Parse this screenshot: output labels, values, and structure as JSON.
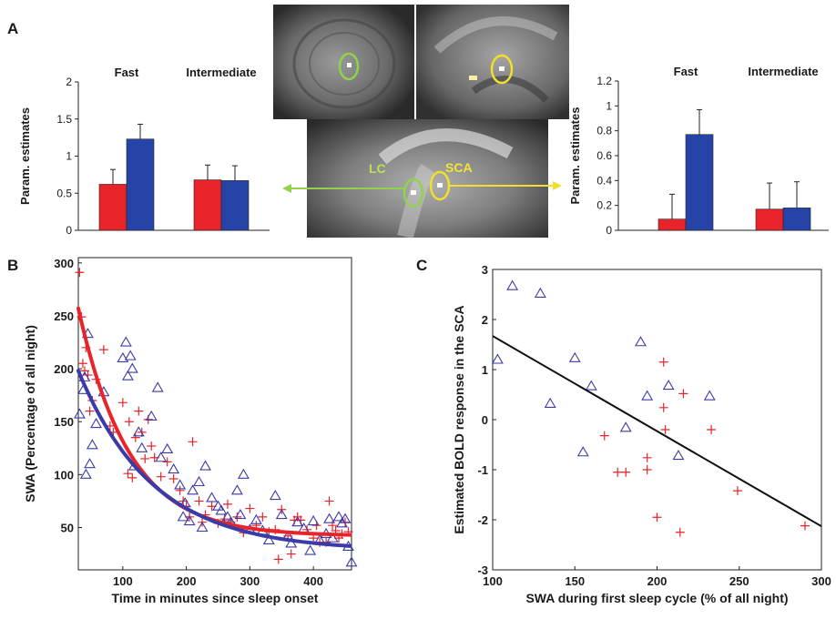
{
  "panels": {
    "A": "A",
    "B": "B",
    "C": "C"
  },
  "brain": {
    "lc_label": "LC",
    "sca_label": "SCA"
  },
  "chart_data": [
    {
      "id": "A-left",
      "type": "bar",
      "groups": [
        "Fast",
        "Intermediate"
      ],
      "series": [
        {
          "color": "#e8242a",
          "values": [
            0.62,
            0.68
          ],
          "errors": [
            0.2,
            0.2
          ]
        },
        {
          "color": "#2644a8",
          "values": [
            1.23,
            0.67
          ],
          "errors": [
            0.2,
            0.2
          ]
        }
      ],
      "ylabel": "Param. estimates",
      "ylim": [
        0,
        2
      ],
      "yticks": [
        "0",
        "0.5",
        "1",
        "1.5",
        "2"
      ],
      "ytick_values": [
        0,
        0.5,
        1,
        1.5,
        2
      ]
    },
    {
      "id": "A-right",
      "type": "bar",
      "groups": [
        "Fast",
        "Intermediate"
      ],
      "series": [
        {
          "color": "#e8242a",
          "values": [
            0.09,
            0.17
          ],
          "errors": [
            0.2,
            0.21
          ]
        },
        {
          "color": "#2644a8",
          "values": [
            0.77,
            0.18
          ],
          "errors": [
            0.2,
            0.21
          ]
        }
      ],
      "ylabel": "Param. estimates",
      "ylim": [
        0,
        1.2
      ],
      "yticks": [
        "0",
        "0.2",
        "0.4",
        "0.6",
        "0.8",
        "1",
        "1.2"
      ],
      "ytick_values": [
        0,
        0.2,
        0.4,
        0.6,
        0.8,
        1,
        1.2
      ]
    },
    {
      "id": "B",
      "type": "scatter",
      "xlabel": "Time in minutes since sleep onset",
      "ylabel": "SWA (Percentage of all night)",
      "xlim": [
        30,
        460
      ],
      "ylim": [
        10,
        305
      ],
      "xticks": [
        "100",
        "200",
        "300",
        "400"
      ],
      "xtick_values": [
        100,
        200,
        300,
        400
      ],
      "yticks": [
        "50",
        "100",
        "150",
        "200",
        "250",
        "300"
      ],
      "ytick_values": [
        50,
        100,
        150,
        200,
        250,
        300
      ],
      "series": [
        {
          "color": "#e8242a",
          "marker": "plus",
          "fit": {
            "A": 215,
            "k": 0.0125,
            "C": 42,
            "x0": 30
          },
          "points": [
            [
              32,
              291
            ],
            [
              35,
              249
            ],
            [
              37,
              205
            ],
            [
              40,
              198
            ],
            [
              42,
              220
            ],
            [
              45,
              194
            ],
            [
              48,
              160
            ],
            [
              52,
              170
            ],
            [
              58,
              190
            ],
            [
              70,
              218
            ],
            [
              80,
              146
            ],
            [
              85,
              140
            ],
            [
              100,
              168
            ],
            [
              108,
              101
            ],
            [
              110,
              150
            ],
            [
              115,
              97
            ],
            [
              120,
              135
            ],
            [
              125,
              160
            ],
            [
              130,
              140
            ],
            [
              135,
              115
            ],
            [
              140,
              152
            ],
            [
              145,
              127
            ],
            [
              150,
              116
            ],
            [
              160,
              98
            ],
            [
              170,
              112
            ],
            [
              180,
              96
            ],
            [
              190,
              85
            ],
            [
              195,
              75
            ],
            [
              200,
              70
            ],
            [
              205,
              60
            ],
            [
              210,
              131
            ],
            [
              220,
              75
            ],
            [
              225,
              55
            ],
            [
              230,
              62
            ],
            [
              240,
              70
            ],
            [
              250,
              54
            ],
            [
              260,
              58
            ],
            [
              265,
              72
            ],
            [
              270,
              55
            ],
            [
              280,
              60
            ],
            [
              290,
              45
            ],
            [
              300,
              68
            ],
            [
              310,
              52
            ],
            [
              320,
              60
            ],
            [
              330,
              46
            ],
            [
              340,
              48
            ],
            [
              345,
              20
            ],
            [
              350,
              67
            ],
            [
              360,
              42
            ],
            [
              365,
              25
            ],
            [
              370,
              57
            ],
            [
              375,
              60
            ],
            [
              380,
              57
            ],
            [
              390,
              48
            ],
            [
              400,
              40
            ],
            [
              405,
              52
            ],
            [
              410,
              36
            ],
            [
              420,
              36
            ],
            [
              425,
              75
            ],
            [
              430,
              52
            ],
            [
              435,
              47
            ],
            [
              440,
              40
            ],
            [
              445,
              44
            ],
            [
              450,
              55
            ],
            [
              455,
              46
            ]
          ]
        },
        {
          "color": "#3a3aa8",
          "marker": "triangle",
          "fit": {
            "A": 170,
            "k": 0.0085,
            "C": 28,
            "x0": 30
          },
          "points": [
            [
              32,
              157
            ],
            [
              38,
              180
            ],
            [
              40,
              192
            ],
            [
              42,
              100
            ],
            [
              45,
              233
            ],
            [
              48,
              110
            ],
            [
              52,
              128
            ],
            [
              58,
              148
            ],
            [
              70,
              178
            ],
            [
              100,
              210
            ],
            [
              105,
              225
            ],
            [
              108,
              193
            ],
            [
              112,
              212
            ],
            [
              115,
              200
            ],
            [
              118,
              108
            ],
            [
              125,
              140
            ],
            [
              130,
              125
            ],
            [
              145,
              155
            ],
            [
              155,
              182
            ],
            [
              160,
              116
            ],
            [
              170,
              124
            ],
            [
              180,
              105
            ],
            [
              190,
              90
            ],
            [
              195,
              60
            ],
            [
              198,
              73
            ],
            [
              205,
              56
            ],
            [
              210,
              85
            ],
            [
              220,
              93
            ],
            [
              225,
              50
            ],
            [
              230,
              108
            ],
            [
              240,
              78
            ],
            [
              250,
              70
            ],
            [
              255,
              66
            ],
            [
              265,
              60
            ],
            [
              270,
              55
            ],
            [
              280,
              85
            ],
            [
              285,
              62
            ],
            [
              290,
              100
            ],
            [
              300,
              48
            ],
            [
              310,
              57
            ],
            [
              320,
              47
            ],
            [
              330,
              38
            ],
            [
              340,
              80
            ],
            [
              350,
              62
            ],
            [
              360,
              42
            ],
            [
              365,
              35
            ],
            [
              375,
              55
            ],
            [
              385,
              49
            ],
            [
              395,
              28
            ],
            [
              400,
              56
            ],
            [
              410,
              38
            ],
            [
              420,
              44
            ],
            [
              425,
              58
            ],
            [
              430,
              40
            ],
            [
              440,
              60
            ],
            [
              445,
              54
            ],
            [
              450,
              58
            ],
            [
              455,
              32
            ],
            [
              460,
              17
            ]
          ]
        }
      ]
    },
    {
      "id": "C",
      "type": "scatter",
      "xlabel": "SWA during first sleep cycle (% of all night)",
      "ylabel": "Estimated BOLD response in the SCA",
      "xlim": [
        100,
        300
      ],
      "ylim": [
        -3,
        3
      ],
      "xticks": [
        "100",
        "150",
        "200",
        "250",
        "300"
      ],
      "xtick_values": [
        100,
        150,
        200,
        250,
        300
      ],
      "yticks": [
        "-3",
        "-2",
        "-1",
        "0",
        "1",
        "2",
        "3"
      ],
      "ytick_values": [
        -3,
        -2,
        -1,
        0,
        1,
        2,
        3
      ],
      "fit_line": {
        "x": [
          100,
          300
        ],
        "y": [
          1.67,
          -2.13
        ]
      },
      "series": [
        {
          "color": "#3a3aa8",
          "marker": "triangle",
          "points": [
            [
              103,
              1.2
            ],
            [
              112,
              2.67
            ],
            [
              129,
              2.52
            ],
            [
              135,
              0.32
            ],
            [
              150,
              1.23
            ],
            [
              155,
              -0.65
            ],
            [
              160,
              0.67
            ],
            [
              181,
              -0.16
            ],
            [
              190,
              1.55
            ],
            [
              194,
              0.47
            ],
            [
              207,
              0.68
            ],
            [
              213,
              -0.72
            ],
            [
              232,
              0.47
            ]
          ]
        },
        {
          "color": "#e8242a",
          "marker": "plus",
          "points": [
            [
              168,
              -0.32
            ],
            [
              176,
              -1.05
            ],
            [
              181,
              -1.05
            ],
            [
              194,
              -0.76
            ],
            [
              194,
              -1.0
            ],
            [
              200,
              -1.95
            ],
            [
              204,
              1.15
            ],
            [
              204,
              0.24
            ],
            [
              205,
              -0.2
            ],
            [
              216,
              0.52
            ],
            [
              214,
              -2.25
            ],
            [
              233,
              -0.2
            ],
            [
              249,
              -1.42
            ],
            [
              290,
              -2.12
            ]
          ]
        }
      ]
    }
  ]
}
